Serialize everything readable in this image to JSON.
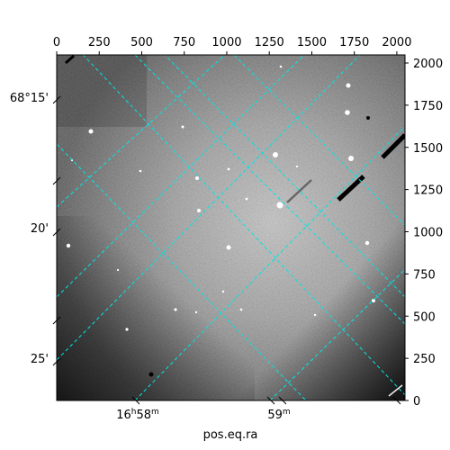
{
  "figure": {
    "xlabel": "pos.eq.ra",
    "top_pixel_ticks": [
      "0",
      "250",
      "500",
      "750",
      "1000",
      "1250",
      "1500",
      "1750",
      "2000"
    ],
    "right_pixel_ticks": [
      "0",
      "250",
      "500",
      "750",
      "1000",
      "1250",
      "1500",
      "1750",
      "2000"
    ],
    "ra_ticks": [
      {
        "hours": "16",
        "minutes": "58"
      },
      {
        "hours": "",
        "minutes": "59"
      }
    ],
    "dec_ticks": [
      "68°15'",
      "20'",
      "25'"
    ],
    "colors": {
      "grid": "#00e5e5",
      "frame": "#000000",
      "text": "#000000",
      "background": "#ffffff"
    }
  }
}
